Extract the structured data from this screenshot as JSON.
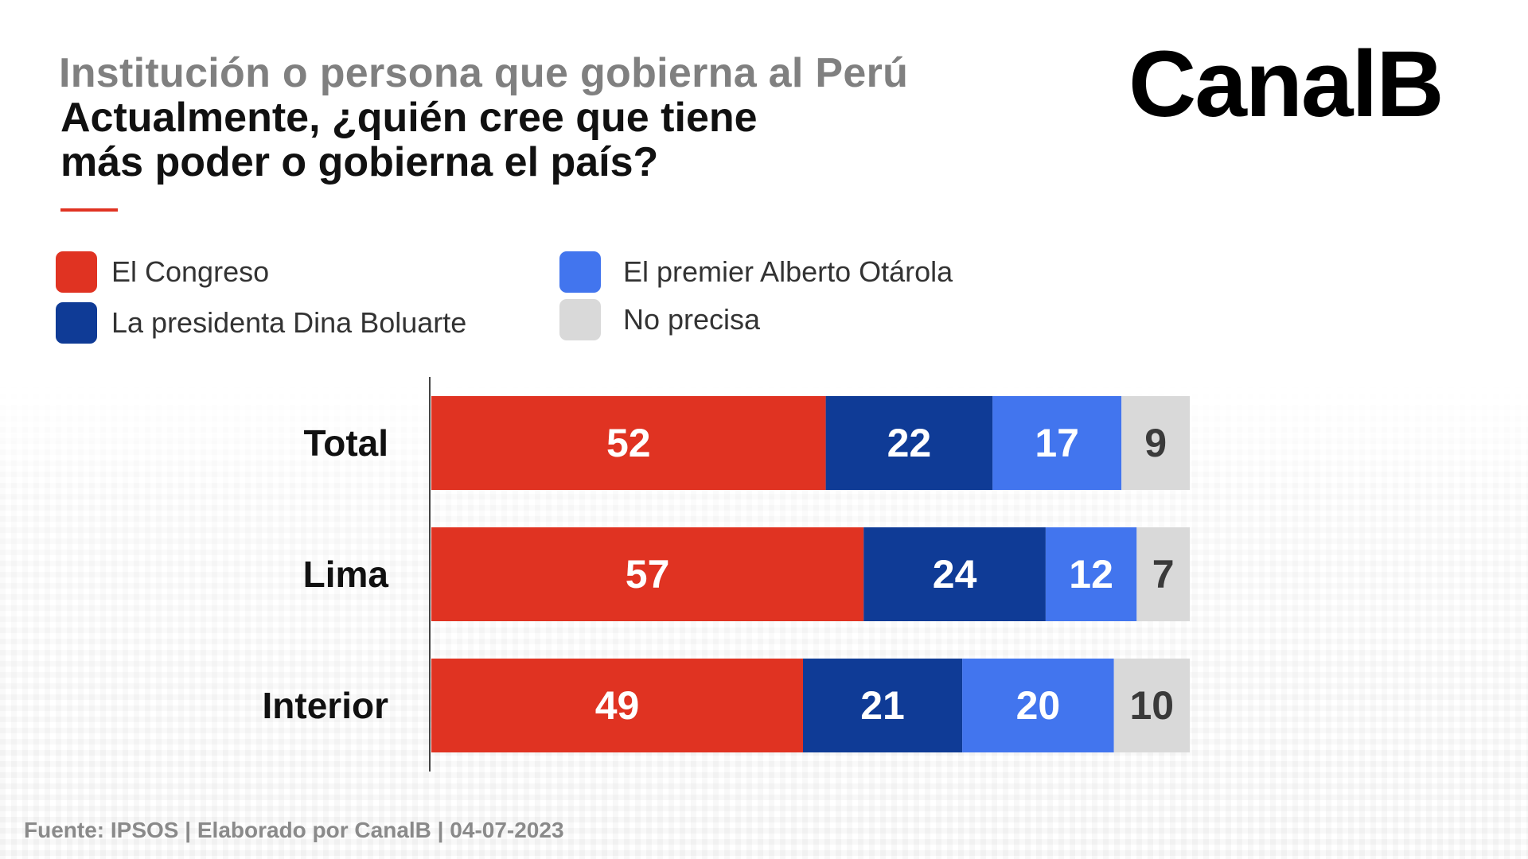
{
  "title": "Institución o persona que gobierna al Perú",
  "subtitle_lines": [
    "Actualmente, ¿quién cree que tiene",
    "más poder o gobierna el país?"
  ],
  "logo_text": "CanalB",
  "source": "Fuente: IPSOS | Elaborado por CanalB | 04-07-2023",
  "colors": {
    "congreso": "#e03322",
    "presidenta": "#0f3b96",
    "premier": "#4275ee",
    "no_precisa": "#d9d9d9",
    "label_light": "#ffffff",
    "label_dark": "#3a3a3a",
    "accent_rule": "#e03322"
  },
  "chart_data": {
    "type": "bar",
    "orientation": "horizontal",
    "stacked": true,
    "title": "Institución o persona que gobierna al Perú",
    "subtitle": "Actualmente, ¿quién cree que tiene más poder o gobierna el país?",
    "categories": [
      "Total",
      "Lima",
      "Interior"
    ],
    "series": [
      {
        "name": "El Congreso",
        "color": "#e03322",
        "values": [
          52,
          57,
          49
        ]
      },
      {
        "name": "La presidenta Dina Boluarte",
        "color": "#0f3b96",
        "values": [
          22,
          24,
          21
        ]
      },
      {
        "name": "El premier Alberto Otárola",
        "color": "#4275ee",
        "values": [
          17,
          12,
          20
        ]
      },
      {
        "name": "No precisa",
        "color": "#d9d9d9",
        "values": [
          9,
          7,
          10
        ]
      }
    ],
    "xlim": [
      0,
      100
    ],
    "data_labels": true,
    "grid": false,
    "legend_position": "top-left"
  }
}
